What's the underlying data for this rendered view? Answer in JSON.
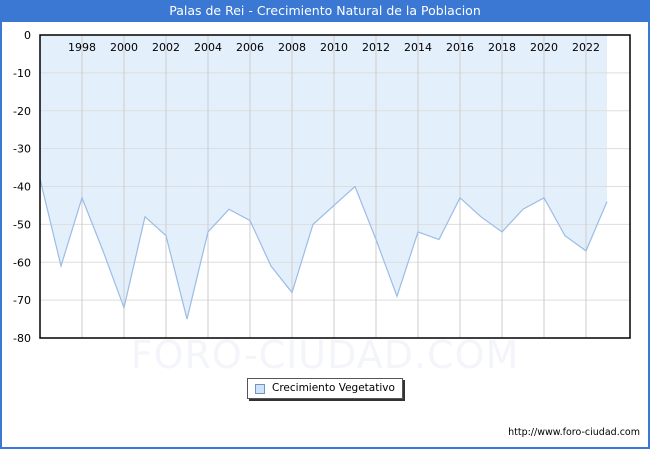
{
  "header": {
    "title": "Palas de Rei - Crecimiento Natural de la Poblacion"
  },
  "watermark": "FORO-CIUDAD.COM",
  "legend": {
    "label": "Crecimiento Vegetativo",
    "swatch_color": "#cfe3f8"
  },
  "footer": {
    "source_url": "http://www.foro-ciudad.com"
  },
  "colors": {
    "title_bar": "#3a78d4",
    "fill": "#e3f0fc",
    "line": "#9bbce6",
    "grid": "#dddddd"
  },
  "chart_data": {
    "type": "area",
    "title": "Palas de Rei - Crecimiento Natural de la Poblacion",
    "xlabel": "",
    "ylabel": "",
    "ylim": [
      -80,
      0
    ],
    "yticks": [
      0,
      -10,
      -20,
      -30,
      -40,
      -50,
      -60,
      -70,
      -80
    ],
    "xtick_labels": [
      "1998",
      "2000",
      "2002",
      "2004",
      "2006",
      "2008",
      "2010",
      "2012",
      "2014",
      "2016",
      "2018",
      "2020",
      "2022"
    ],
    "grid": true,
    "legend_position": "bottom-center",
    "x": [
      1996,
      1997,
      1998,
      1999,
      2000,
      2001,
      2002,
      2003,
      2004,
      2005,
      2006,
      2007,
      2008,
      2009,
      2010,
      2011,
      2012,
      2013,
      2014,
      2015,
      2016,
      2017,
      2018,
      2019,
      2020,
      2021,
      2022,
      2023
    ],
    "series": [
      {
        "name": "Crecimiento Vegetativo",
        "values": [
          -38,
          -61,
          -43,
          -57,
          -72,
          -48,
          -53,
          -75,
          -52,
          -46,
          -49,
          -61,
          -68,
          -50,
          -45,
          -40,
          -54,
          -69,
          -52,
          -54,
          -43,
          -48,
          -52,
          -46,
          -43,
          -53,
          -57,
          -44
        ]
      }
    ]
  }
}
